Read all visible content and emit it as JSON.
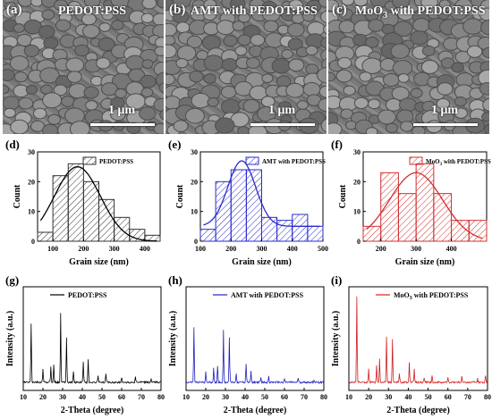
{
  "sem_panels": [
    {
      "label": "(a)",
      "title": "PEDOT:PSS",
      "scale": "1 μm"
    },
    {
      "label": "(b)",
      "title": "AMT with PEDOT:PSS",
      "scale": "1 μm"
    },
    {
      "label": "(c)",
      "title_main": "MoO",
      "title_sub": "3",
      "title_rest": " with PEDOT:PSS",
      "scale": "1 μm"
    }
  ],
  "chart_data": [
    {
      "type": "bar",
      "panel": "(d)",
      "legend": "PEDOT:PSS",
      "color": "#333333",
      "x": [
        75,
        125,
        175,
        225,
        275,
        325,
        375,
        425
      ],
      "values": [
        3,
        22,
        26,
        20,
        14,
        8,
        4,
        2
      ],
      "fit_peak": 180,
      "fit_height": 25,
      "fit_sigma": 75,
      "xlim": [
        50,
        450
      ],
      "ylim": [
        0,
        30
      ],
      "xticks": [
        100,
        200,
        300,
        400
      ],
      "yticks": [
        0,
        10,
        20,
        30
      ],
      "xlabel": "Grain size (nm)",
      "ylabel": "Count"
    },
    {
      "type": "bar",
      "panel": "(e)",
      "legend": "AMT with PEDOT:PSS",
      "color": "#2b2bd0",
      "x": [
        125,
        175,
        225,
        275,
        325,
        375,
        425,
        475
      ],
      "values": [
        4,
        20,
        24,
        24,
        8,
        7,
        9,
        5
      ],
      "fit_peak": 235,
      "fit_height": 27,
      "fit_sigma": 45,
      "fit_floor": 5,
      "xlim": [
        100,
        500
      ],
      "ylim": [
        0,
        30
      ],
      "xticks": [
        100,
        200,
        300,
        400,
        500
      ],
      "yticks": [
        0,
        10,
        20,
        30
      ],
      "xlabel": "Grain size (nm)",
      "ylabel": "Count"
    },
    {
      "type": "bar",
      "panel": "(f)",
      "legend_main": "MoO",
      "legend_sub": "3",
      "legend_rest": " with PEDOT:PSS",
      "color": "#d03030",
      "x": [
        175,
        225,
        275,
        325,
        375,
        425,
        475
      ],
      "values": [
        5,
        23,
        16,
        26,
        16,
        7,
        7
      ],
      "fit_peak": 300,
      "fit_height": 23,
      "fit_sigma": 75,
      "xlim": [
        150,
        500
      ],
      "ylim": [
        0,
        30
      ],
      "xticks": [
        200,
        300,
        400
      ],
      "yticks": [
        0,
        10,
        20,
        30
      ],
      "xlabel": "Grain size (nm)",
      "ylabel": "Count"
    },
    {
      "type": "line",
      "panel": "(g)",
      "legend": "PEDOT:PSS",
      "color": "#000000",
      "peaks": [
        [
          14,
          0.65
        ],
        [
          20,
          0.15
        ],
        [
          24,
          0.18
        ],
        [
          25.5,
          0.2
        ],
        [
          29,
          0.75
        ],
        [
          32,
          0.5
        ],
        [
          35.5,
          0.12
        ],
        [
          40.5,
          0.22
        ],
        [
          43,
          0.25
        ],
        [
          48,
          0.08
        ],
        [
          52,
          0.1
        ],
        [
          60,
          0.06
        ],
        [
          67,
          0.07
        ],
        [
          75,
          0.04
        ]
      ],
      "xlim": [
        10,
        80
      ],
      "xticks": [
        10,
        20,
        30,
        40,
        50,
        60,
        70,
        80
      ],
      "xlabel": "2-Theta (degree)",
      "ylabel": "Intensity (a.u.)"
    },
    {
      "type": "line",
      "panel": "(h)",
      "legend": "AMT with PEDOT:PSS",
      "color": "#2020c0",
      "peaks": [
        [
          14,
          0.6
        ],
        [
          20,
          0.12
        ],
        [
          24,
          0.15
        ],
        [
          26,
          0.18
        ],
        [
          29,
          0.58
        ],
        [
          32,
          0.5
        ],
        [
          35.5,
          0.1
        ],
        [
          40.5,
          0.2
        ],
        [
          43,
          0.12
        ],
        [
          48,
          0.05
        ],
        [
          52,
          0.06
        ],
        [
          60,
          0.04
        ],
        [
          67,
          0.05
        ],
        [
          75,
          0.03
        ]
      ],
      "xlim": [
        10,
        80
      ],
      "xticks": [
        10,
        20,
        30,
        40,
        50,
        60,
        70,
        80
      ],
      "xlabel": "2-Theta (degree)",
      "ylabel": "Intensity (a.u.)"
    },
    {
      "type": "line",
      "panel": "(i)",
      "legend_main": "MoO",
      "legend_sub": "3",
      "legend_rest": " with PEDOT:PSS",
      "color": "#d02020",
      "peaks": [
        [
          14,
          0.95
        ],
        [
          20,
          0.15
        ],
        [
          24,
          0.18
        ],
        [
          25.5,
          0.25
        ],
        [
          29,
          0.5
        ],
        [
          32,
          0.48
        ],
        [
          35.5,
          0.1
        ],
        [
          40.5,
          0.22
        ],
        [
          43,
          0.14
        ],
        [
          48,
          0.05
        ],
        [
          52,
          0.07
        ],
        [
          60,
          0.05
        ],
        [
          67,
          0.07
        ],
        [
          75,
          0.04
        ],
        [
          79,
          0.08
        ]
      ],
      "xlim": [
        10,
        80
      ],
      "xticks": [
        10,
        20,
        30,
        40,
        50,
        60,
        70,
        80
      ],
      "xlabel": "2-Theta (degree)",
      "ylabel": "Intensity (a.u.)"
    }
  ]
}
